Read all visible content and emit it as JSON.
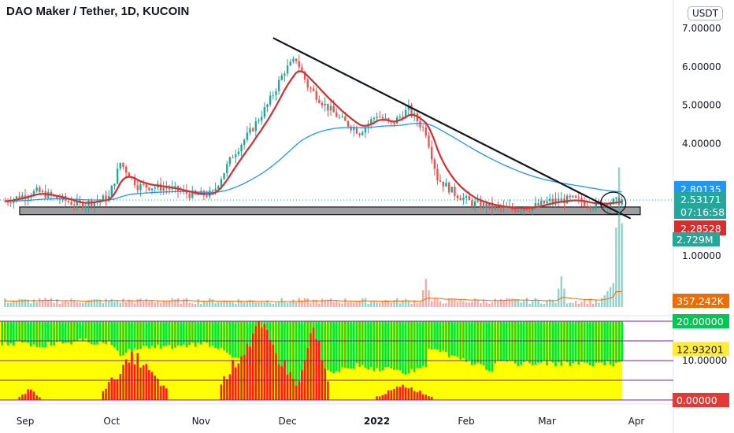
{
  "header": {
    "title": "DAO Maker / Tether, 1D, KUCOIN",
    "currency": "USDT"
  },
  "chart_data": [
    {
      "type": "candlestick",
      "title": "DAO Maker / Tether, 1D, KUCOIN",
      "yticks": [
        "7.00000",
        "6.00000",
        "5.00000",
        "4.00000"
      ],
      "ylim": [
        2.0,
        7.0
      ],
      "xticks": [
        "Sep",
        "Oct",
        "Nov",
        "Dec",
        "2022",
        "Feb",
        "Mar",
        "Apr"
      ],
      "close_series": {
        "x": [
          "2021-08-25",
          "2021-09-05",
          "2021-09-20",
          "2021-09-30",
          "2021-10-04",
          "2021-10-10",
          "2021-10-20",
          "2021-10-30",
          "2021-11-05",
          "2021-11-12",
          "2021-11-18",
          "2021-11-24",
          "2021-11-30",
          "2021-12-04",
          "2021-12-08",
          "2021-12-14",
          "2021-12-20",
          "2021-12-26",
          "2022-01-01",
          "2022-01-06",
          "2022-01-12",
          "2022-01-18",
          "2022-01-22",
          "2022-01-28",
          "2022-02-03",
          "2022-02-10",
          "2022-02-17",
          "2022-02-24",
          "2022-03-02",
          "2022-03-10",
          "2022-03-17",
          "2022-03-22",
          "2022-03-27"
        ],
        "y": [
          2.5,
          2.75,
          2.4,
          2.6,
          3.5,
          2.9,
          2.85,
          2.65,
          2.7,
          3.7,
          4.3,
          5.0,
          5.9,
          6.2,
          5.5,
          5.0,
          4.6,
          4.3,
          4.75,
          4.5,
          4.9,
          4.3,
          3.1,
          2.7,
          2.45,
          2.35,
          2.3,
          2.35,
          2.5,
          2.55,
          2.4,
          2.45,
          2.53
        ]
      },
      "price_labels": [
        {
          "name": "ema",
          "value": "2.80135",
          "color": "#2196f3"
        },
        {
          "name": "last-price",
          "value": "2.53171",
          "color": "#26a69a"
        },
        {
          "name": "countdown",
          "value": "07:16:58",
          "color": "#26a69a"
        },
        {
          "name": "ma",
          "value": "2.28528",
          "color": "#d32f2f"
        }
      ],
      "trendline": {
        "from": [
          "2021-11-26",
          6.75
        ],
        "to": [
          "2022-03-30",
          2.05
        ]
      },
      "support_zone": [
        2.15,
        2.35
      ],
      "circle_marker": {
        "date": "2022-03-24",
        "price": 2.45
      }
    },
    {
      "type": "bar",
      "name": "volume",
      "yticks": [
        "1.00000"
      ],
      "last_labels": [
        {
          "value": "2.729M",
          "color": "#26a69a"
        },
        {
          "value": "357.242K",
          "color": "#ef6c00"
        }
      ],
      "spikes": [
        {
          "date": "2022-01-18",
          "value": 0.55
        },
        {
          "date": "2022-03-06",
          "value": 0.6
        },
        {
          "date": "2022-03-26",
          "value": 2.729
        }
      ]
    },
    {
      "type": "area",
      "name": "oscillator",
      "yticks": [
        "10.00000"
      ],
      "ylim": [
        0,
        20
      ],
      "levels": [
        0,
        5,
        10,
        15,
        20
      ],
      "labels": [
        {
          "value": "20.00000",
          "color": "#00c853"
        },
        {
          "value": "12.93201",
          "color": "#ffeb3b"
        },
        {
          "value": "0.00000",
          "color": "#e53935"
        }
      ],
      "red_bursts": [
        {
          "from": "2021-08-30",
          "to": "2021-09-06",
          "peak": 3
        },
        {
          "from": "2021-09-28",
          "to": "2021-10-20",
          "peak": 12
        },
        {
          "from": "2021-11-08",
          "to": "2021-12-04",
          "peak": 20
        },
        {
          "from": "2021-12-05",
          "to": "2021-12-15",
          "peak": 20
        },
        {
          "from": "2022-01-01",
          "to": "2022-01-20",
          "peak": 4
        }
      ]
    }
  ],
  "time_axis": {
    "labels": [
      "Sep",
      "Oct",
      "Nov",
      "Dec",
      "2022",
      "Feb",
      "Mar",
      "Apr"
    ],
    "dates": [
      "2021-09-01",
      "2021-10-01",
      "2021-11-01",
      "2021-12-01",
      "2022-01-01",
      "2022-02-01",
      "2022-03-01",
      "2022-04-01"
    ]
  }
}
